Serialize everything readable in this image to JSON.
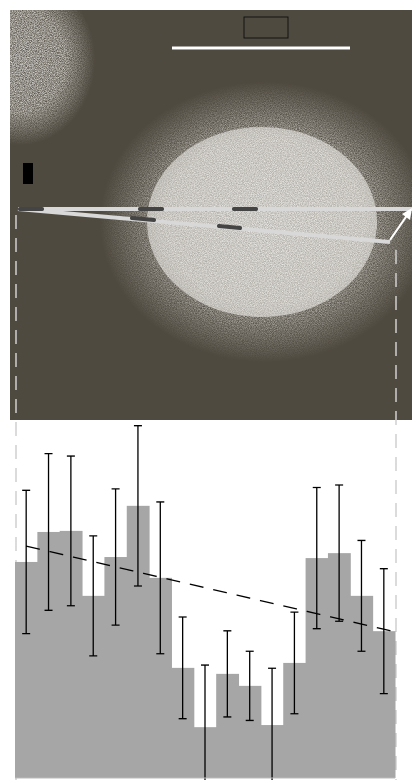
{
  "chart_data": {
    "type": "bar",
    "values": [
      61.2,
      69.7,
      70.0,
      51.6,
      62.6,
      77.1,
      56.7,
      31.2,
      14.4,
      29.5,
      26.1,
      15.0,
      32.6,
      62.3,
      63.7,
      51.6,
      41.6
    ],
    "errors": [
      20.3,
      22.2,
      21.2,
      17.0,
      19.3,
      22.7,
      21.5,
      14.4,
      17.6,
      12.2,
      9.8,
      16.1,
      14.4,
      20.0,
      19.3,
      15.7,
      17.7
    ],
    "color": "#a6a6a6",
    "trend": {
      "start": 65.7,
      "end": 41.4
    },
    "ylim": [
      0,
      100
    ]
  }
}
